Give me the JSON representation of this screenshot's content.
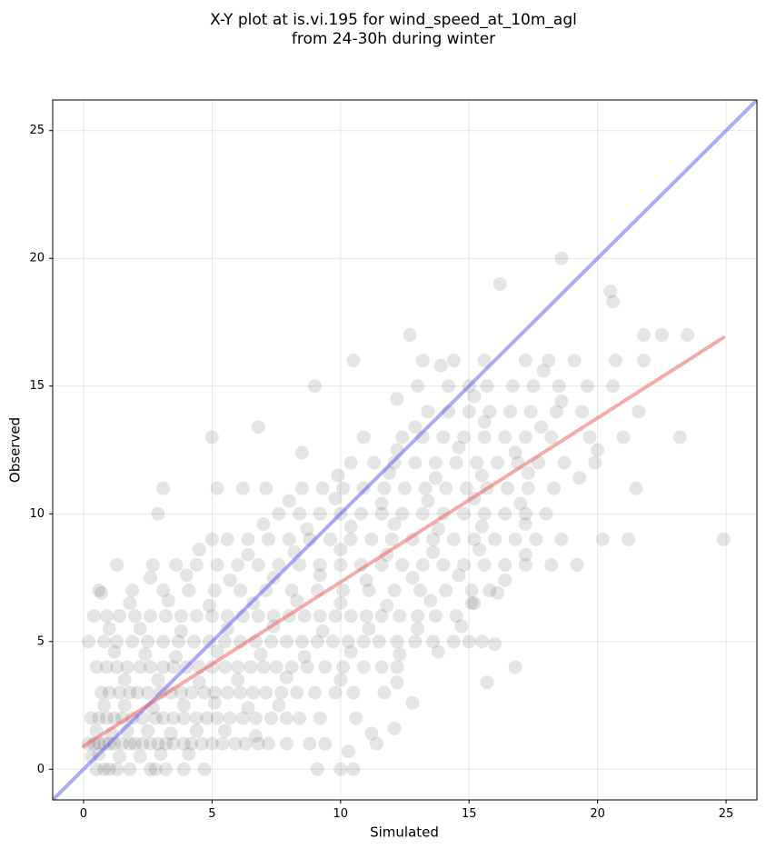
{
  "chart_data": {
    "type": "scatter",
    "title": [
      "X-Y plot at is.vi.195 for wind_speed_at_10m_agl",
      "from 24-30h during winter"
    ],
    "xlabel": "Simulated",
    "ylabel": "Observed",
    "xlim": [
      -1.2,
      26.2
    ],
    "ylim": [
      -1.2,
      26.2
    ],
    "xticks": [
      0,
      5,
      10,
      15,
      20,
      25
    ],
    "yticks": [
      0,
      5,
      10,
      15,
      20,
      25
    ],
    "grid": true,
    "colors": {
      "points": "#000000",
      "one_to_one_line": "#6666ee",
      "fit_line": "#ee6666"
    },
    "lines": [
      {
        "role": "one-to-one",
        "x": [
          -1.2,
          26.2
        ],
        "y": [
          -1.2,
          26.2
        ]
      },
      {
        "role": "fit",
        "x": [
          0.0,
          24.9
        ],
        "y": [
          0.9,
          16.9
        ]
      }
    ],
    "points": [
      [
        0.5,
        0.0
      ],
      [
        0.8,
        0.0
      ],
      [
        1.0,
        0.0
      ],
      [
        1.3,
        0.0
      ],
      [
        1.8,
        0.0
      ],
      [
        2.6,
        0.0
      ],
      [
        2.8,
        0.0
      ],
      [
        3.2,
        0.0
      ],
      [
        3.9,
        0.0
      ],
      [
        4.7,
        0.0
      ],
      [
        9.1,
        0.0
      ],
      [
        10.0,
        0.0
      ],
      [
        10.5,
        0.0
      ],
      [
        0.3,
        0.5
      ],
      [
        0.6,
        0.6
      ],
      [
        1.4,
        0.5
      ],
      [
        2.2,
        0.5
      ],
      [
        3.0,
        0.6
      ],
      [
        4.1,
        0.6
      ],
      [
        10.3,
        0.7
      ],
      [
        0.2,
        1.0
      ],
      [
        0.4,
        1.0
      ],
      [
        0.6,
        1.0
      ],
      [
        0.8,
        1.0
      ],
      [
        1.0,
        1.0
      ],
      [
        1.2,
        1.0
      ],
      [
        1.5,
        1.0
      ],
      [
        1.8,
        1.0
      ],
      [
        2.0,
        1.0
      ],
      [
        2.3,
        1.0
      ],
      [
        2.6,
        1.0
      ],
      [
        2.9,
        1.0
      ],
      [
        3.2,
        1.0
      ],
      [
        3.5,
        1.0
      ],
      [
        3.9,
        1.0
      ],
      [
        4.2,
        1.0
      ],
      [
        4.6,
        1.0
      ],
      [
        5.0,
        1.0
      ],
      [
        5.4,
        1.0
      ],
      [
        5.9,
        1.0
      ],
      [
        6.3,
        1.0
      ],
      [
        6.8,
        1.0
      ],
      [
        7.2,
        1.0
      ],
      [
        7.9,
        1.0
      ],
      [
        8.8,
        1.0
      ],
      [
        9.4,
        1.0
      ],
      [
        11.4,
        1.0
      ],
      [
        0.5,
        1.5
      ],
      [
        1.1,
        1.4
      ],
      [
        1.7,
        1.5
      ],
      [
        2.5,
        1.5
      ],
      [
        3.4,
        1.4
      ],
      [
        4.4,
        1.5
      ],
      [
        5.5,
        1.5
      ],
      [
        6.7,
        1.3
      ],
      [
        11.2,
        1.4
      ],
      [
        12.1,
        1.6
      ],
      [
        0.3,
        2.0
      ],
      [
        0.6,
        2.0
      ],
      [
        0.9,
        2.0
      ],
      [
        1.2,
        2.0
      ],
      [
        1.5,
        2.0
      ],
      [
        1.9,
        2.0
      ],
      [
        2.3,
        2.0
      ],
      [
        2.8,
        2.0
      ],
      [
        3.1,
        2.0
      ],
      [
        3.5,
        2.0
      ],
      [
        3.9,
        2.0
      ],
      [
        4.4,
        2.0
      ],
      [
        4.8,
        2.0
      ],
      [
        5.2,
        2.0
      ],
      [
        5.7,
        2.0
      ],
      [
        6.2,
        2.0
      ],
      [
        6.7,
        2.0
      ],
      [
        7.3,
        2.0
      ],
      [
        7.9,
        2.0
      ],
      [
        8.4,
        2.0
      ],
      [
        9.2,
        2.0
      ],
      [
        10.6,
        2.0
      ],
      [
        0.8,
        2.5
      ],
      [
        1.6,
        2.5
      ],
      [
        2.7,
        2.4
      ],
      [
        3.9,
        2.5
      ],
      [
        5.1,
        2.6
      ],
      [
        6.4,
        2.4
      ],
      [
        7.6,
        2.5
      ],
      [
        12.8,
        2.6
      ],
      [
        0.7,
        3.0
      ],
      [
        1.0,
        3.0
      ],
      [
        1.4,
        3.0
      ],
      [
        1.8,
        3.0
      ],
      [
        2.1,
        3.0
      ],
      [
        2.5,
        3.0
      ],
      [
        3.0,
        3.0
      ],
      [
        3.4,
        3.0
      ],
      [
        3.8,
        3.0
      ],
      [
        4.2,
        3.0
      ],
      [
        4.7,
        3.0
      ],
      [
        5.1,
        3.0
      ],
      [
        5.6,
        3.0
      ],
      [
        6.1,
        3.0
      ],
      [
        6.6,
        3.0
      ],
      [
        7.1,
        3.0
      ],
      [
        7.7,
        3.0
      ],
      [
        8.3,
        3.0
      ],
      [
        9.0,
        3.0
      ],
      [
        9.8,
        3.0
      ],
      [
        10.5,
        3.0
      ],
      [
        11.7,
        3.0
      ],
      [
        1.6,
        3.5
      ],
      [
        2.9,
        3.5
      ],
      [
        4.5,
        3.4
      ],
      [
        6.0,
        3.5
      ],
      [
        7.9,
        3.6
      ],
      [
        10.0,
        3.5
      ],
      [
        12.2,
        3.4
      ],
      [
        15.7,
        3.4
      ],
      [
        0.5,
        4.0
      ],
      [
        0.9,
        4.0
      ],
      [
        1.3,
        4.0
      ],
      [
        1.7,
        4.0
      ],
      [
        2.2,
        4.0
      ],
      [
        2.6,
        4.0
      ],
      [
        3.1,
        4.0
      ],
      [
        3.5,
        4.0
      ],
      [
        4.0,
        4.0
      ],
      [
        4.5,
        4.0
      ],
      [
        5.0,
        4.0
      ],
      [
        5.5,
        4.0
      ],
      [
        6.0,
        4.0
      ],
      [
        6.5,
        4.0
      ],
      [
        7.0,
        4.0
      ],
      [
        7.5,
        4.0
      ],
      [
        8.1,
        4.0
      ],
      [
        8.7,
        4.0
      ],
      [
        9.4,
        4.0
      ],
      [
        10.1,
        4.0
      ],
      [
        10.9,
        4.0
      ],
      [
        11.6,
        4.0
      ],
      [
        12.2,
        4.0
      ],
      [
        16.8,
        4.0
      ],
      [
        1.2,
        4.6
      ],
      [
        2.4,
        4.5
      ],
      [
        3.6,
        4.4
      ],
      [
        5.2,
        4.6
      ],
      [
        6.9,
        4.5
      ],
      [
        8.6,
        4.4
      ],
      [
        10.4,
        4.6
      ],
      [
        12.3,
        4.5
      ],
      [
        13.8,
        4.6
      ],
      [
        0.2,
        5.0
      ],
      [
        0.8,
        5.0
      ],
      [
        1.3,
        5.0
      ],
      [
        1.9,
        5.0
      ],
      [
        2.5,
        5.0
      ],
      [
        3.1,
        5.0
      ],
      [
        3.7,
        5.0
      ],
      [
        4.3,
        5.0
      ],
      [
        4.9,
        5.0
      ],
      [
        5.5,
        5.0
      ],
      [
        6.1,
        5.0
      ],
      [
        6.7,
        5.0
      ],
      [
        7.3,
        5.0
      ],
      [
        7.9,
        5.0
      ],
      [
        8.5,
        5.0
      ],
      [
        9.1,
        5.0
      ],
      [
        9.7,
        5.0
      ],
      [
        10.3,
        5.0
      ],
      [
        10.9,
        5.0
      ],
      [
        11.5,
        5.0
      ],
      [
        12.2,
        5.0
      ],
      [
        12.9,
        5.0
      ],
      [
        13.6,
        5.0
      ],
      [
        14.4,
        5.0
      ],
      [
        15.0,
        5.0
      ],
      [
        15.5,
        5.0
      ],
      [
        16.0,
        4.9
      ],
      [
        1.0,
        5.5
      ],
      [
        2.2,
        5.5
      ],
      [
        3.8,
        5.4
      ],
      [
        5.6,
        5.5
      ],
      [
        7.4,
        5.6
      ],
      [
        9.3,
        5.4
      ],
      [
        11.1,
        5.5
      ],
      [
        13.0,
        5.5
      ],
      [
        14.7,
        5.6
      ],
      [
        0.4,
        6.0
      ],
      [
        0.9,
        6.0
      ],
      [
        1.4,
        6.0
      ],
      [
        2.0,
        6.0
      ],
      [
        2.6,
        6.0
      ],
      [
        3.2,
        6.0
      ],
      [
        3.8,
        6.0
      ],
      [
        4.4,
        6.0
      ],
      [
        5.0,
        6.0
      ],
      [
        5.6,
        6.0
      ],
      [
        6.2,
        6.0
      ],
      [
        6.8,
        6.0
      ],
      [
        7.4,
        6.0
      ],
      [
        8.0,
        6.0
      ],
      [
        8.6,
        6.0
      ],
      [
        9.2,
        6.0
      ],
      [
        9.8,
        6.0
      ],
      [
        10.4,
        6.0
      ],
      [
        11.0,
        6.0
      ],
      [
        11.6,
        6.0
      ],
      [
        12.3,
        6.0
      ],
      [
        13.0,
        6.0
      ],
      [
        13.7,
        6.0
      ],
      [
        14.5,
        6.0
      ],
      [
        15.2,
        6.5
      ],
      [
        1.8,
        6.5
      ],
      [
        3.3,
        6.6
      ],
      [
        4.9,
        6.4
      ],
      [
        6.6,
        6.5
      ],
      [
        8.3,
        6.6
      ],
      [
        10.0,
        6.5
      ],
      [
        11.8,
        6.4
      ],
      [
        13.5,
        6.6
      ],
      [
        15.1,
        6.5
      ],
      [
        0.6,
        7.0
      ],
      [
        0.7,
        6.9
      ],
      [
        1.9,
        7.0
      ],
      [
        3.1,
        7.0
      ],
      [
        4.1,
        7.0
      ],
      [
        5.1,
        7.0
      ],
      [
        6.1,
        7.0
      ],
      [
        7.1,
        7.0
      ],
      [
        8.1,
        7.0
      ],
      [
        9.1,
        7.0
      ],
      [
        10.1,
        7.0
      ],
      [
        11.1,
        7.0
      ],
      [
        12.1,
        7.0
      ],
      [
        13.1,
        7.0
      ],
      [
        14.1,
        7.0
      ],
      [
        15.1,
        7.0
      ],
      [
        15.8,
        7.0
      ],
      [
        16.1,
        6.9
      ],
      [
        2.6,
        7.5
      ],
      [
        4.0,
        7.6
      ],
      [
        5.7,
        7.4
      ],
      [
        7.4,
        7.5
      ],
      [
        9.2,
        7.6
      ],
      [
        11.0,
        7.4
      ],
      [
        12.8,
        7.5
      ],
      [
        14.6,
        7.6
      ],
      [
        16.4,
        7.4
      ],
      [
        1.3,
        8.0
      ],
      [
        2.7,
        8.0
      ],
      [
        3.6,
        8.0
      ],
      [
        4.4,
        8.0
      ],
      [
        5.2,
        8.0
      ],
      [
        6.0,
        8.0
      ],
      [
        6.8,
        8.0
      ],
      [
        7.6,
        8.0
      ],
      [
        8.4,
        8.0
      ],
      [
        9.2,
        8.0
      ],
      [
        10.0,
        8.0
      ],
      [
        10.8,
        8.0
      ],
      [
        11.6,
        8.0
      ],
      [
        12.4,
        8.0
      ],
      [
        13.2,
        8.0
      ],
      [
        14.0,
        8.0
      ],
      [
        14.8,
        8.0
      ],
      [
        15.6,
        8.0
      ],
      [
        16.4,
        8.0
      ],
      [
        17.2,
        8.0
      ],
      [
        18.2,
        8.0
      ],
      [
        19.2,
        8.0
      ],
      [
        4.5,
        8.6
      ],
      [
        6.4,
        8.4
      ],
      [
        8.2,
        8.5
      ],
      [
        10.0,
        8.6
      ],
      [
        11.8,
        8.4
      ],
      [
        13.6,
        8.5
      ],
      [
        15.4,
        8.6
      ],
      [
        17.2,
        8.4
      ],
      [
        5.0,
        9.0
      ],
      [
        5.6,
        9.0
      ],
      [
        6.4,
        9.0
      ],
      [
        7.2,
        9.0
      ],
      [
        8.0,
        9.0
      ],
      [
        8.8,
        9.0
      ],
      [
        9.6,
        9.0
      ],
      [
        10.4,
        9.0
      ],
      [
        11.2,
        9.0
      ],
      [
        12.0,
        9.0
      ],
      [
        12.8,
        9.0
      ],
      [
        13.6,
        9.0
      ],
      [
        14.4,
        9.0
      ],
      [
        15.2,
        9.0
      ],
      [
        16.0,
        9.0
      ],
      [
        16.8,
        9.0
      ],
      [
        17.6,
        9.0
      ],
      [
        18.6,
        9.0
      ],
      [
        20.2,
        9.0
      ],
      [
        21.2,
        9.0
      ],
      [
        24.9,
        9.0
      ],
      [
        7.0,
        9.6
      ],
      [
        8.7,
        9.4
      ],
      [
        10.4,
        9.5
      ],
      [
        12.1,
        9.6
      ],
      [
        13.8,
        9.4
      ],
      [
        15.5,
        9.5
      ],
      [
        17.2,
        9.6
      ],
      [
        2.9,
        10.0
      ],
      [
        7.6,
        10.0
      ],
      [
        8.4,
        10.0
      ],
      [
        9.2,
        10.0
      ],
      [
        10.0,
        10.0
      ],
      [
        10.8,
        10.0
      ],
      [
        11.6,
        10.0
      ],
      [
        12.4,
        10.0
      ],
      [
        13.2,
        10.0
      ],
      [
        14.0,
        10.0
      ],
      [
        14.8,
        10.0
      ],
      [
        15.6,
        10.0
      ],
      [
        16.4,
        10.0
      ],
      [
        17.2,
        10.0
      ],
      [
        18.0,
        10.0
      ],
      [
        8.0,
        10.5
      ],
      [
        9.8,
        10.6
      ],
      [
        11.6,
        10.4
      ],
      [
        13.4,
        10.5
      ],
      [
        15.2,
        10.6
      ],
      [
        17.0,
        10.4
      ],
      [
        3.1,
        11.0
      ],
      [
        5.2,
        11.0
      ],
      [
        6.2,
        11.0
      ],
      [
        7.1,
        11.0
      ],
      [
        8.5,
        11.0
      ],
      [
        9.3,
        11.0
      ],
      [
        10.1,
        11.0
      ],
      [
        10.9,
        11.0
      ],
      [
        11.7,
        11.0
      ],
      [
        12.5,
        11.0
      ],
      [
        13.3,
        11.0
      ],
      [
        14.1,
        11.0
      ],
      [
        14.9,
        11.0
      ],
      [
        15.7,
        11.0
      ],
      [
        16.5,
        11.0
      ],
      [
        17.3,
        11.0
      ],
      [
        18.3,
        11.0
      ],
      [
        21.5,
        11.0
      ],
      [
        9.9,
        11.5
      ],
      [
        11.9,
        11.6
      ],
      [
        13.7,
        11.4
      ],
      [
        15.5,
        11.5
      ],
      [
        17.3,
        11.6
      ],
      [
        19.3,
        11.4
      ],
      [
        10.4,
        12.0
      ],
      [
        11.3,
        12.0
      ],
      [
        12.1,
        12.0
      ],
      [
        12.9,
        12.0
      ],
      [
        13.7,
        12.0
      ],
      [
        14.5,
        12.0
      ],
      [
        15.3,
        12.0
      ],
      [
        16.1,
        12.0
      ],
      [
        16.9,
        12.0
      ],
      [
        17.7,
        12.0
      ],
      [
        18.7,
        12.0
      ],
      [
        19.9,
        12.0
      ],
      [
        8.5,
        12.4
      ],
      [
        12.2,
        12.5
      ],
      [
        14.6,
        12.6
      ],
      [
        16.8,
        12.4
      ],
      [
        20.0,
        12.5
      ],
      [
        5.0,
        13.0
      ],
      [
        10.9,
        13.0
      ],
      [
        12.4,
        13.0
      ],
      [
        13.2,
        13.0
      ],
      [
        14.0,
        13.0
      ],
      [
        14.8,
        13.0
      ],
      [
        15.6,
        13.0
      ],
      [
        16.4,
        13.0
      ],
      [
        17.2,
        13.0
      ],
      [
        18.2,
        13.0
      ],
      [
        19.7,
        13.0
      ],
      [
        21.0,
        13.0
      ],
      [
        23.2,
        13.0
      ],
      [
        6.8,
        13.4
      ],
      [
        12.9,
        13.4
      ],
      [
        15.6,
        13.6
      ],
      [
        17.8,
        13.4
      ],
      [
        13.4,
        14.0
      ],
      [
        14.2,
        14.0
      ],
      [
        15.0,
        14.0
      ],
      [
        15.8,
        14.0
      ],
      [
        16.6,
        14.0
      ],
      [
        17.4,
        14.0
      ],
      [
        18.4,
        14.0
      ],
      [
        19.4,
        14.0
      ],
      [
        21.6,
        14.0
      ],
      [
        12.2,
        14.5
      ],
      [
        15.2,
        14.6
      ],
      [
        18.6,
        14.4
      ],
      [
        9.0,
        15.0
      ],
      [
        13.0,
        15.0
      ],
      [
        14.2,
        15.0
      ],
      [
        15.0,
        15.0
      ],
      [
        15.7,
        15.0
      ],
      [
        16.7,
        15.0
      ],
      [
        17.5,
        15.0
      ],
      [
        18.5,
        15.0
      ],
      [
        19.6,
        15.0
      ],
      [
        20.6,
        15.0
      ],
      [
        13.9,
        15.8
      ],
      [
        17.9,
        15.6
      ],
      [
        10.5,
        16.0
      ],
      [
        13.2,
        16.0
      ],
      [
        14.4,
        16.0
      ],
      [
        15.6,
        16.0
      ],
      [
        17.2,
        16.0
      ],
      [
        18.1,
        16.0
      ],
      [
        19.1,
        16.0
      ],
      [
        20.7,
        16.0
      ],
      [
        21.8,
        16.0
      ],
      [
        12.7,
        17.0
      ],
      [
        21.8,
        17.0
      ],
      [
        22.5,
        17.0
      ],
      [
        23.5,
        17.0
      ],
      [
        20.6,
        18.3
      ],
      [
        20.5,
        18.7
      ],
      [
        16.2,
        19.0
      ],
      [
        18.6,
        20.0
      ]
    ]
  }
}
